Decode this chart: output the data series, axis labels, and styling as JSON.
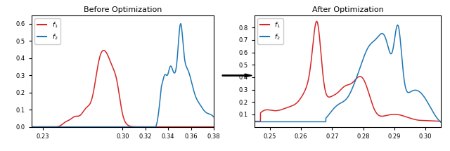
{
  "title_before": "Before Optimization",
  "title_after": "After Optimization",
  "legend_label_1": "$f_1$",
  "legend_label_2": "$f_2$",
  "before": {
    "xlim": [
      0.22,
      0.38
    ],
    "ylim": [
      0.0,
      0.65
    ],
    "xticks": [
      0.23,
      0.3,
      0.32,
      0.34,
      0.36,
      0.38
    ],
    "yticks": [
      0.0,
      0.1,
      0.2,
      0.3,
      0.4,
      0.5,
      0.6
    ]
  },
  "after": {
    "xlim": [
      0.245,
      0.305
    ],
    "ylim": [
      0.0,
      0.9
    ],
    "xticks": [
      0.25,
      0.26,
      0.27,
      0.28,
      0.29,
      0.3
    ],
    "yticks": [
      0.1,
      0.2,
      0.3,
      0.4,
      0.5,
      0.6,
      0.7,
      0.8
    ]
  },
  "color_red": "#d62728",
  "color_blue": "#1f77b4",
  "figsize": [
    6.4,
    2.15
  ],
  "dpi": 100
}
